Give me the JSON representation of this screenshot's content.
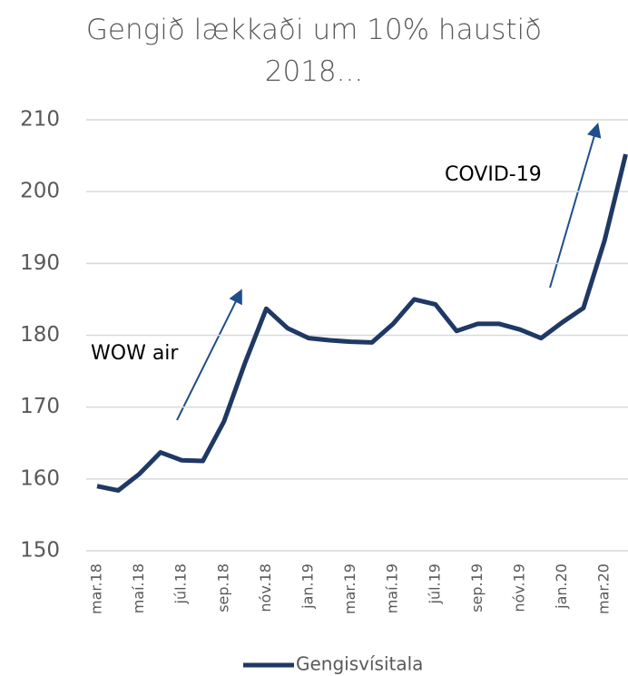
{
  "chart_data": {
    "type": "line",
    "title": "Gengið lækkaði um 10% haustið 2018...",
    "categories": [
      "mar.18",
      null,
      "maí.18",
      null,
      "júl.18",
      null,
      "sep.18",
      null,
      "nóv.18",
      null,
      "jan.19",
      null,
      "mar.19",
      null,
      "maí.19",
      null,
      "júl.19",
      null,
      "sep.19",
      null,
      "nóv.19",
      null,
      "jan.20",
      null,
      "mar.20",
      null
    ],
    "series": [
      {
        "name": "Gengisvísitala",
        "color": "#1f3864",
        "values": [
          159.0,
          158.4,
          160.7,
          163.7,
          162.6,
          162.5,
          168.0,
          176.2,
          183.7,
          181.0,
          179.6,
          179.3,
          179.1,
          179.0,
          181.6,
          185.0,
          184.3,
          180.6,
          181.6,
          181.6,
          180.8,
          179.6,
          181.8,
          183.8,
          193.2,
          205.2
        ]
      }
    ],
    "ylim": [
      150,
      210
    ],
    "yticks": [
      150,
      160,
      170,
      180,
      190,
      200,
      210
    ],
    "grid": true,
    "annotations": [
      "WOW air",
      "COVID-19"
    ],
    "legend": "bottom"
  }
}
